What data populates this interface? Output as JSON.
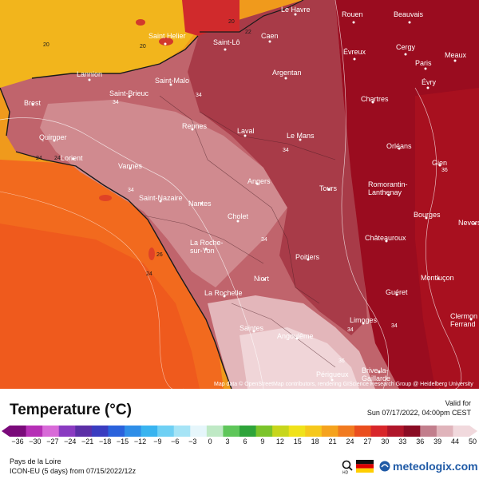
{
  "map": {
    "cities": [
      {
        "name": "Le Havre"
      },
      {
        "name": "Rouen"
      },
      {
        "name": "Beauvais"
      },
      {
        "name": "Saint Helier"
      },
      {
        "name": "Saint-Lô"
      },
      {
        "name": "Caen"
      },
      {
        "name": "Évreux"
      },
      {
        "name": "Cergy"
      },
      {
        "name": "Meaux"
      },
      {
        "name": "Paris"
      },
      {
        "name": "Argentan"
      },
      {
        "name": "Évry"
      },
      {
        "name": "Lannion"
      },
      {
        "name": "Saint-Malo"
      },
      {
        "name": "Saint-Brieuc"
      },
      {
        "name": "Brest"
      },
      {
        "name": "Chartres"
      },
      {
        "name": "Rennes"
      },
      {
        "name": "Laval"
      },
      {
        "name": "Le Mans"
      },
      {
        "name": "Quimper"
      },
      {
        "name": "Orléans"
      },
      {
        "name": "Lorient"
      },
      {
        "name": "Gien"
      },
      {
        "name": "Vannes"
      },
      {
        "name": "Angers"
      },
      {
        "name": "Tours"
      },
      {
        "name": "Romorantin-\nLanthenay"
      },
      {
        "name": "Saint-Nazaire"
      },
      {
        "name": "Nantes"
      },
      {
        "name": "Cholet"
      },
      {
        "name": "Bourges"
      },
      {
        "name": "Nevers"
      },
      {
        "name": "Châteauroux"
      },
      {
        "name": "La Roche-\nsur-Yon"
      },
      {
        "name": "Poitiers"
      },
      {
        "name": "Niort"
      },
      {
        "name": "Montluçon"
      },
      {
        "name": "La Rochelle"
      },
      {
        "name": "Guéret"
      },
      {
        "name": "Limoges"
      },
      {
        "name": "Clermon\nFerrand"
      },
      {
        "name": "Saintes"
      },
      {
        "name": "Angoulême"
      },
      {
        "name": "Brive-la-\nGaillarde"
      },
      {
        "name": "Périgueux"
      }
    ],
    "isotherm_labels": [
      "20",
      "22",
      "20",
      "20",
      "34",
      "24",
      "34",
      "34",
      "34",
      "24",
      "26",
      "24",
      "34",
      "34",
      "36",
      "36",
      "34"
    ],
    "attribution": "Map data © OpenStreetMap contributors, rendering GIScience Research Group @ Heidelberg University"
  },
  "legend": {
    "title": "Temperature (°C)",
    "valid_label": "Valid for",
    "valid_time": "Sun 07/17/2022, 04:00pm CEST",
    "ticks": [
      "−36",
      "−30",
      "−27",
      "−24",
      "−21",
      "−18",
      "−15",
      "−12",
      "−9",
      "−6",
      "−3",
      "0",
      "3",
      "6",
      "9",
      "12",
      "15",
      "18",
      "21",
      "24",
      "27",
      "30",
      "33",
      "36",
      "39",
      "44",
      "50"
    ],
    "colors": [
      "#7a0a7a",
      "#b62fb6",
      "#d86ad8",
      "#8a3bc1",
      "#5b2fa6",
      "#3a3cc0",
      "#2a62dc",
      "#2f8ee8",
      "#39b4f0",
      "#6fd0f4",
      "#a6e4f6",
      "#e6f6fb",
      "#bfe9c5",
      "#5fc65a",
      "#2ea43a",
      "#7bc42a",
      "#c7d61c",
      "#f0e21a",
      "#f6c81c",
      "#f5a31e",
      "#f17a20",
      "#ea4e1e",
      "#d8262a",
      "#b0162a",
      "#8a0c24",
      "#c27e8c",
      "#e0b4bb",
      "#f1d9dd"
    ]
  },
  "footer": {
    "region": "Pays de la Loire",
    "model": "ICON-EU (5 days) from 07/15/2022/12z",
    "brand": "meteologix.com",
    "flag": "germany-flag-icon"
  }
}
